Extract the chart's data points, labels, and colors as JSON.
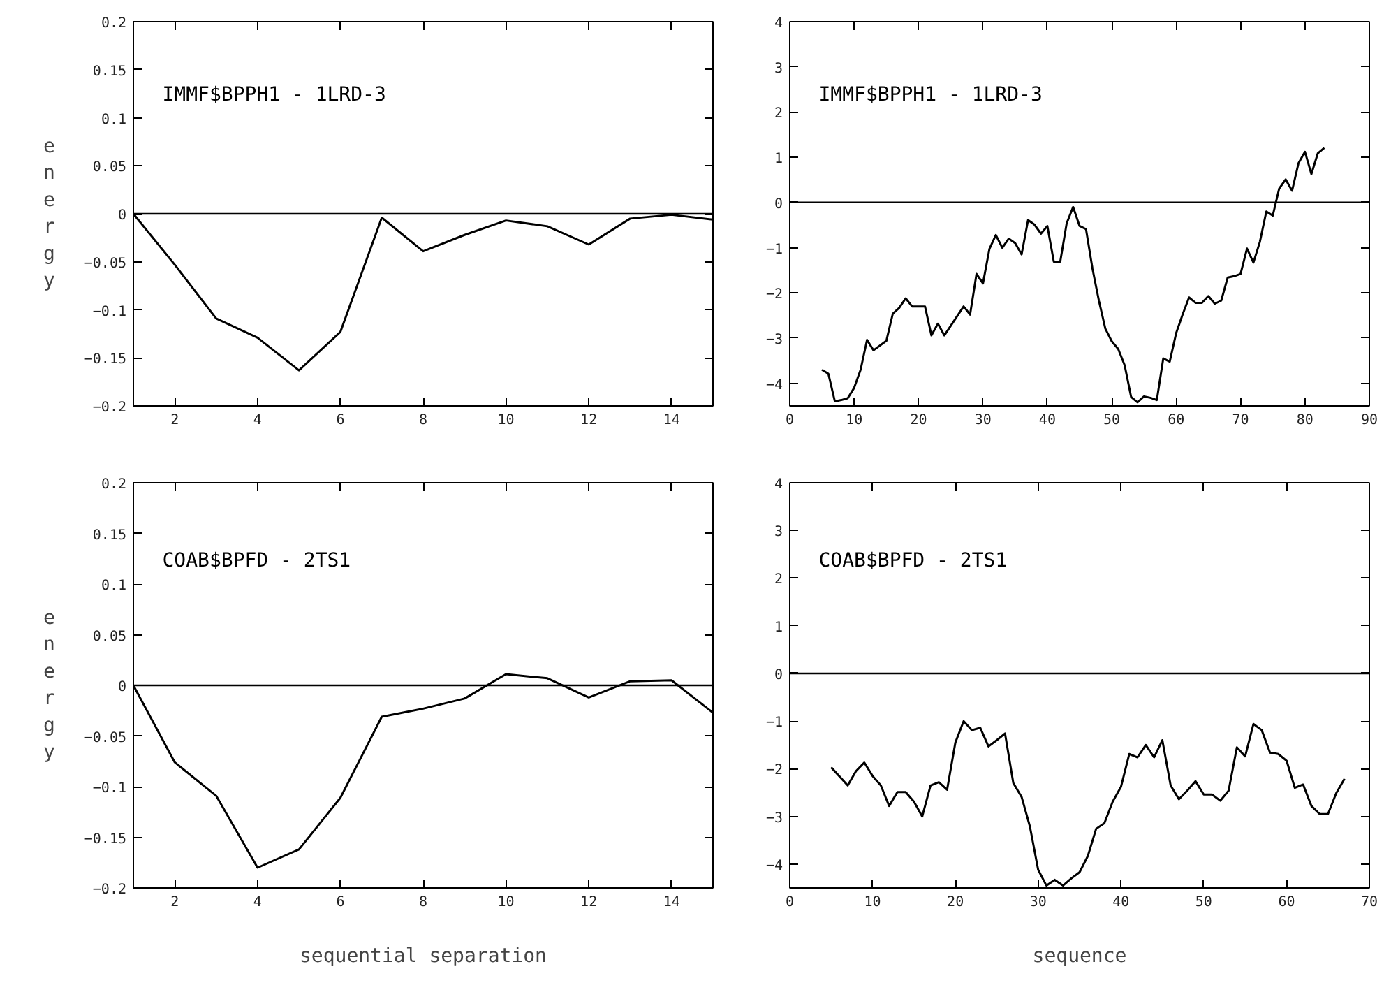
{
  "chart_data": [
    {
      "type": "line",
      "title": "IMMF$BPPH1  -  1LRD-3",
      "ylabel": "energy",
      "xlim": [
        1,
        15
      ],
      "xticks": [
        2,
        4,
        6,
        8,
        10,
        12,
        14
      ],
      "ylim": [
        -0.2,
        0.2
      ],
      "yticks": [
        0.2,
        0.15,
        0.1,
        0.05,
        0,
        -0.05,
        -0.1,
        -0.15,
        -0.2
      ],
      "grid": false,
      "ref_lines": [
        {
          "axis": "y",
          "value": 0,
          "color": "#000000"
        }
      ],
      "series": [
        {
          "color": "#000000",
          "x": [
            1,
            2,
            3,
            4,
            5,
            6,
            7,
            8,
            9,
            10,
            11,
            12,
            13,
            14,
            15
          ],
          "values": [
            0,
            -0.053,
            -0.109,
            -0.129,
            -0.163,
            -0.123,
            -0.004,
            -0.039,
            -0.022,
            -0.007,
            -0.013,
            -0.032,
            -0.005,
            -0.001,
            -0.006
          ]
        }
      ]
    },
    {
      "type": "line",
      "title": "IMMF$BPPH1  -  1LRD-3",
      "xlim": [
        0,
        90
      ],
      "xticks": [
        0,
        10,
        20,
        30,
        40,
        50,
        60,
        70,
        80,
        90
      ],
      "ylim": [
        -4.5,
        4
      ],
      "yticks": [
        4,
        3,
        2,
        1,
        0,
        -1,
        -2,
        -3,
        -4
      ],
      "grid": false,
      "ref_lines": [
        {
          "axis": "y",
          "value": 0,
          "color": "#000000"
        }
      ],
      "series": [
        {
          "color": "#000000",
          "x": [
            5,
            6,
            7,
            8,
            9,
            10,
            11,
            12,
            13,
            15,
            16,
            17,
            18,
            19,
            21,
            22,
            23,
            24,
            27,
            28,
            29,
            30,
            31,
            32,
            33,
            34,
            35,
            36,
            37,
            38,
            39,
            40,
            41,
            42,
            43,
            44,
            45,
            46,
            47,
            48,
            49,
            50,
            51,
            52,
            53,
            54,
            55,
            56,
            57,
            58,
            59,
            60,
            61,
            62,
            63,
            64,
            65,
            66,
            67,
            68,
            69,
            70,
            71,
            72,
            73,
            74,
            75,
            76,
            77,
            78,
            79,
            80,
            81,
            82,
            83
          ],
          "values": [
            -3.7,
            -3.79,
            -4.4,
            -4.37,
            -4.33,
            -4.1,
            -3.7,
            -3.04,
            -3.27,
            -3.06,
            -2.46,
            -2.33,
            -2.12,
            -2.3,
            -2.3,
            -2.94,
            -2.68,
            -2.94,
            -2.3,
            -2.48,
            -1.58,
            -1.79,
            -1.03,
            -0.72,
            -1.0,
            -0.8,
            -0.9,
            -1.15,
            -0.39,
            -0.49,
            -0.69,
            -0.52,
            -1.31,
            -1.31,
            -0.46,
            -0.1,
            -0.52,
            -0.59,
            -1.46,
            -2.17,
            -2.79,
            -3.07,
            -3.24,
            -3.6,
            -4.3,
            -4.42,
            -4.29,
            -4.32,
            -4.37,
            -3.45,
            -3.52,
            -2.89,
            -2.48,
            -2.1,
            -2.22,
            -2.22,
            -2.07,
            -2.24,
            -2.17,
            -1.66,
            -1.63,
            -1.58,
            -1.02,
            -1.33,
            -0.87,
            -0.2,
            -0.29,
            0.31,
            0.51,
            0.26,
            0.87,
            1.12,
            0.63,
            1.09,
            1.21
          ]
        }
      ]
    },
    {
      "type": "line",
      "title": "COAB$BPFD  -  2TS1",
      "ylabel": "energy",
      "xlabel": "sequential separation",
      "xlim": [
        1,
        15
      ],
      "xticks": [
        2,
        4,
        6,
        8,
        10,
        12,
        14
      ],
      "ylim": [
        -0.2,
        0.2
      ],
      "yticks": [
        0.2,
        0.15,
        0.1,
        0.05,
        0,
        -0.05,
        -0.1,
        -0.15,
        -0.2
      ],
      "grid": false,
      "ref_lines": [
        {
          "axis": "y",
          "value": 0,
          "color": "#000000"
        }
      ],
      "series": [
        {
          "color": "#000000",
          "x": [
            1,
            2,
            3,
            4,
            5,
            6,
            7,
            8,
            9,
            10,
            11,
            12,
            13,
            14,
            15
          ],
          "values": [
            0,
            -0.076,
            -0.109,
            -0.18,
            -0.162,
            -0.111,
            -0.031,
            -0.023,
            -0.013,
            0.011,
            0.007,
            -0.012,
            0.004,
            0.005,
            -0.027
          ]
        }
      ]
    },
    {
      "type": "line",
      "title": "COAB$BPFD  -  2TS1",
      "xlabel": "sequence",
      "xlim": [
        0,
        70
      ],
      "xticks": [
        0,
        10,
        20,
        30,
        40,
        50,
        60,
        70
      ],
      "ylim": [
        -4.5,
        4
      ],
      "yticks": [
        4,
        3,
        2,
        1,
        0,
        -1,
        -2,
        -3,
        -4
      ],
      "grid": false,
      "ref_lines": [
        {
          "axis": "y",
          "value": 0,
          "color": "#000000"
        }
      ],
      "series": [
        {
          "color": "#000000",
          "x": [
            5,
            7,
            8,
            9,
            10,
            11,
            12,
            13,
            14,
            15,
            16,
            17,
            18,
            19,
            20,
            21,
            22,
            23,
            24,
            25,
            26,
            27,
            28,
            29,
            30,
            31,
            32,
            33,
            34,
            35,
            36,
            37,
            38,
            39,
            40,
            41,
            42,
            43,
            44,
            45,
            46,
            47,
            48,
            49,
            50,
            51,
            52,
            53,
            54,
            55,
            56,
            57,
            58,
            59,
            60,
            61,
            62,
            63,
            64,
            65,
            66,
            67
          ],
          "values": [
            -1.97,
            -2.35,
            -2.05,
            -1.87,
            -2.15,
            -2.35,
            -2.78,
            -2.49,
            -2.49,
            -2.69,
            -3.0,
            -2.35,
            -2.28,
            -2.44,
            -1.45,
            -1.0,
            -1.19,
            -1.14,
            -1.53,
            -1.4,
            -1.26,
            -2.3,
            -2.59,
            -3.21,
            -4.12,
            -4.45,
            -4.33,
            -4.45,
            -4.3,
            -4.17,
            -3.83,
            -3.26,
            -3.14,
            -2.69,
            -2.38,
            -1.69,
            -1.76,
            -1.5,
            -1.76,
            -1.4,
            -2.35,
            -2.64,
            -2.46,
            -2.26,
            -2.54,
            -2.54,
            -2.67,
            -2.46,
            -1.55,
            -1.74,
            -1.06,
            -1.19,
            -1.66,
            -1.69,
            -1.83,
            -2.4,
            -2.33,
            -2.78,
            -2.95,
            -2.95,
            -2.51,
            -2.21
          ]
        }
      ]
    }
  ]
}
